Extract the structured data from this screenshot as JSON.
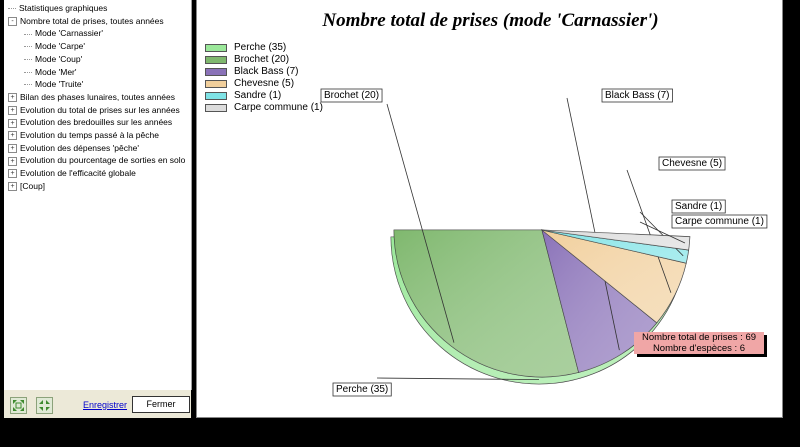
{
  "tree": {
    "items": [
      {
        "label": "Statistiques graphiques",
        "level": 0,
        "toggle": ""
      },
      {
        "label": "Nombre total de prises, toutes années",
        "level": 0,
        "toggle": "-"
      },
      {
        "label": "Mode 'Carnassier'",
        "level": 1,
        "toggle": ""
      },
      {
        "label": "Mode 'Carpe'",
        "level": 1,
        "toggle": ""
      },
      {
        "label": "Mode 'Coup'",
        "level": 1,
        "toggle": ""
      },
      {
        "label": "Mode 'Mer'",
        "level": 1,
        "toggle": ""
      },
      {
        "label": "Mode 'Truite'",
        "level": 1,
        "toggle": ""
      },
      {
        "label": "Bilan des phases lunaires, toutes années",
        "level": 0,
        "toggle": "+"
      },
      {
        "label": "Evolution du total de prises sur les années",
        "level": 0,
        "toggle": "+"
      },
      {
        "label": "Evolution des bredouilles sur les années",
        "level": 0,
        "toggle": "+"
      },
      {
        "label": "Evolution du temps passé à la pêche",
        "level": 0,
        "toggle": "+"
      },
      {
        "label": "Evolution des dépenses 'pêche'",
        "level": 0,
        "toggle": "+"
      },
      {
        "label": "Evolution du pourcentage de sorties en solo",
        "level": 0,
        "toggle": "+"
      },
      {
        "label": "Evolution de l'efficacité globale",
        "level": 0,
        "toggle": "+"
      },
      {
        "label": "[Coup]",
        "level": 0,
        "toggle": "+"
      }
    ]
  },
  "footer": {
    "register_label": "Enregistrer",
    "close_label": "Fermer",
    "expand_icon": "expand-all-icon",
    "collapse_icon": "collapse-all-icon"
  },
  "chart_data": {
    "type": "pie",
    "title": "Nombre total de prises (mode 'Carnassier')",
    "legend_position": "top-left",
    "slices": [
      {
        "label": "Perche (35)",
        "name": "Perche",
        "value": 35,
        "color": "#9be89a",
        "exploded": true
      },
      {
        "label": "Brochet (20)",
        "name": "Brochet",
        "value": 20,
        "color": "#7fb86e"
      },
      {
        "label": "Black Bass (7)",
        "name": "Black Bass",
        "value": 7,
        "color": "#8a72b8"
      },
      {
        "label": "Chevesne (5)",
        "name": "Chevesne",
        "value": 5,
        "color": "#f1cf9c"
      },
      {
        "label": "Sandre (1)",
        "name": "Sandre",
        "value": 1,
        "color": "#7fe3e6"
      },
      {
        "label": "Carpe commune (1)",
        "name": "Carpe commune",
        "value": 1,
        "color": "#dcdcdc"
      }
    ],
    "summary_line1": "Nombre total de prises : 69",
    "summary_line2": "Nombre d'espèces : 6"
  }
}
